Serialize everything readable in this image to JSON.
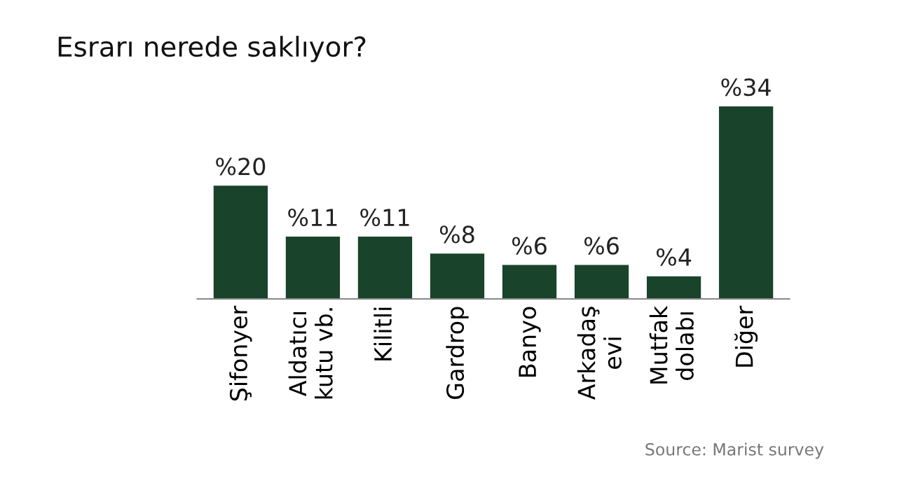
{
  "chart_data": {
    "type": "bar",
    "title": "Esrarı nerede saklıyor?",
    "categories": [
      "Şifonyer",
      "Aldatıcı\nkutu vb.",
      "Kilitli",
      "Gardrop",
      "Banyo",
      "Arkadaş\nevi",
      "Mutfak\ndolabı",
      "Diğer"
    ],
    "values": [
      20,
      11,
      11,
      8,
      6,
      6,
      4,
      34
    ],
    "value_labels": [
      "%20",
      "%11",
      "%11",
      "%8",
      "%6",
      "%6",
      "%4",
      "%34"
    ],
    "color": "#19432a",
    "annotations": [
      "Source: Marist survey"
    ],
    "grid": false,
    "legend": false
  }
}
